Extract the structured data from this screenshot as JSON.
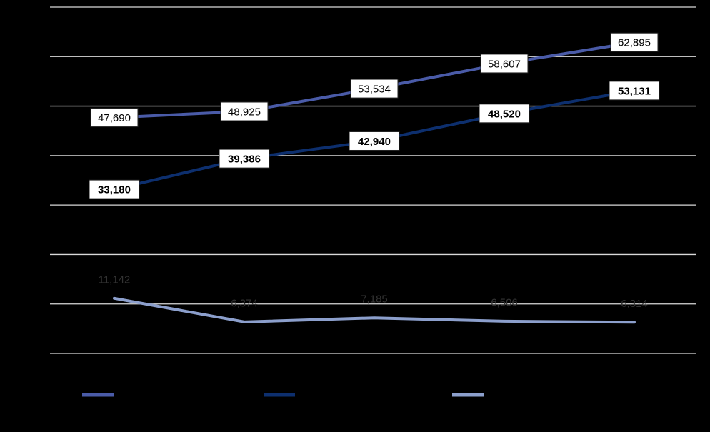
{
  "chart_data": {
    "type": "line",
    "title": "",
    "xlabel": "",
    "ylabel": "",
    "categories": [
      "",
      "",
      "",
      "",
      ""
    ],
    "ylim": [
      0,
      70000
    ],
    "grid": true,
    "legend": "bottom",
    "series": [
      {
        "values": [
          47690,
          48925,
          53534,
          58607,
          62895
        ],
        "labels": [
          "47,690",
          "48,925",
          "53,534",
          "58,607",
          "62,895"
        ],
        "color": "#4A5BA8",
        "label_style": "boxed"
      },
      {
        "values": [
          33180,
          39386,
          42940,
          48520,
          53131
        ],
        "labels": [
          "33,180",
          "39,386",
          "42,940",
          "48,520",
          "53,131"
        ],
        "color": "#0D2F6E",
        "label_style": "boxed-bold"
      },
      {
        "values": [
          11142,
          6374,
          7185,
          6506,
          6314
        ],
        "labels": [
          "11,142",
          "6,374",
          "7,185",
          "6,506",
          "6,314"
        ],
        "color": "#8C9FCC",
        "label_style": "plain"
      }
    ]
  }
}
